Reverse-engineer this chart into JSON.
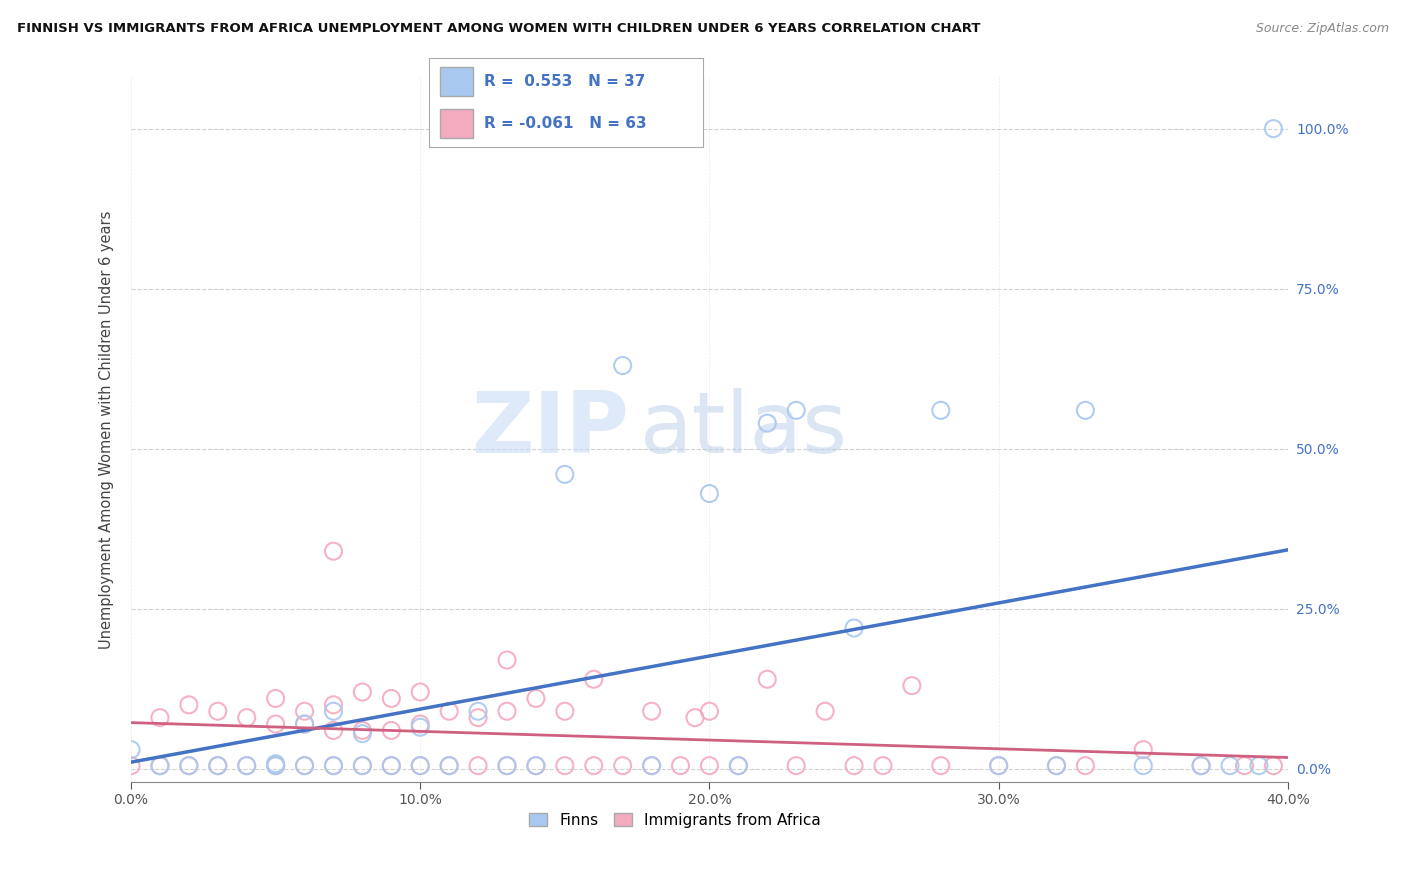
{
  "title": "FINNISH VS IMMIGRANTS FROM AFRICA UNEMPLOYMENT AMONG WOMEN WITH CHILDREN UNDER 6 YEARS CORRELATION CHART",
  "source": "Source: ZipAtlas.com",
  "ylabel": "Unemployment Among Women with Children Under 6 years",
  "xlim": [
    0.0,
    0.4
  ],
  "ylim": [
    -0.02,
    1.08
  ],
  "finn_R": 0.553,
  "finn_N": 37,
  "africa_R": -0.061,
  "africa_N": 63,
  "finn_color": "#A8C8F0",
  "africa_color": "#F4AABF",
  "finn_line_color": "#4472C4",
  "africa_line_color": "#D06080",
  "legend_finn_label": "Finns",
  "legend_africa_label": "Immigrants from Africa",
  "watermark_zip": "ZIP",
  "watermark_atlas": "atlas",
  "finn_scatter_x": [
    0.0,
    0.01,
    0.02,
    0.03,
    0.04,
    0.05,
    0.05,
    0.06,
    0.06,
    0.07,
    0.07,
    0.08,
    0.08,
    0.09,
    0.1,
    0.1,
    0.11,
    0.12,
    0.13,
    0.14,
    0.15,
    0.17,
    0.18,
    0.2,
    0.21,
    0.22,
    0.23,
    0.25,
    0.28,
    0.3,
    0.32,
    0.33,
    0.35,
    0.37,
    0.38,
    0.39,
    0.395
  ],
  "finn_scatter_y": [
    0.03,
    0.005,
    0.005,
    0.005,
    0.005,
    0.005,
    0.008,
    0.005,
    0.07,
    0.005,
    0.09,
    0.005,
    0.055,
    0.005,
    0.005,
    0.065,
    0.005,
    0.09,
    0.005,
    0.005,
    0.46,
    0.63,
    0.005,
    0.43,
    0.005,
    0.54,
    0.56,
    0.22,
    0.56,
    0.005,
    0.005,
    0.56,
    0.005,
    0.005,
    0.005,
    0.005,
    1.0
  ],
  "africa_scatter_x": [
    0.0,
    0.01,
    0.01,
    0.02,
    0.02,
    0.03,
    0.03,
    0.04,
    0.04,
    0.05,
    0.05,
    0.05,
    0.06,
    0.06,
    0.06,
    0.07,
    0.07,
    0.07,
    0.08,
    0.08,
    0.08,
    0.09,
    0.09,
    0.09,
    0.1,
    0.1,
    0.1,
    0.11,
    0.11,
    0.12,
    0.12,
    0.13,
    0.13,
    0.14,
    0.14,
    0.15,
    0.15,
    0.16,
    0.16,
    0.17,
    0.18,
    0.18,
    0.19,
    0.2,
    0.2,
    0.21,
    0.22,
    0.23,
    0.24,
    0.25,
    0.26,
    0.27,
    0.28,
    0.3,
    0.32,
    0.33,
    0.35,
    0.37,
    0.385,
    0.395,
    0.07,
    0.13,
    0.195
  ],
  "africa_scatter_y": [
    0.005,
    0.005,
    0.08,
    0.005,
    0.1,
    0.005,
    0.09,
    0.005,
    0.08,
    0.005,
    0.07,
    0.11,
    0.005,
    0.07,
    0.09,
    0.005,
    0.06,
    0.1,
    0.005,
    0.06,
    0.12,
    0.005,
    0.06,
    0.11,
    0.005,
    0.07,
    0.12,
    0.005,
    0.09,
    0.005,
    0.08,
    0.005,
    0.09,
    0.005,
    0.11,
    0.005,
    0.09,
    0.005,
    0.14,
    0.005,
    0.005,
    0.09,
    0.005,
    0.005,
    0.09,
    0.005,
    0.14,
    0.005,
    0.09,
    0.005,
    0.005,
    0.13,
    0.005,
    0.005,
    0.005,
    0.005,
    0.03,
    0.005,
    0.005,
    0.005,
    0.34,
    0.17,
    0.08
  ]
}
